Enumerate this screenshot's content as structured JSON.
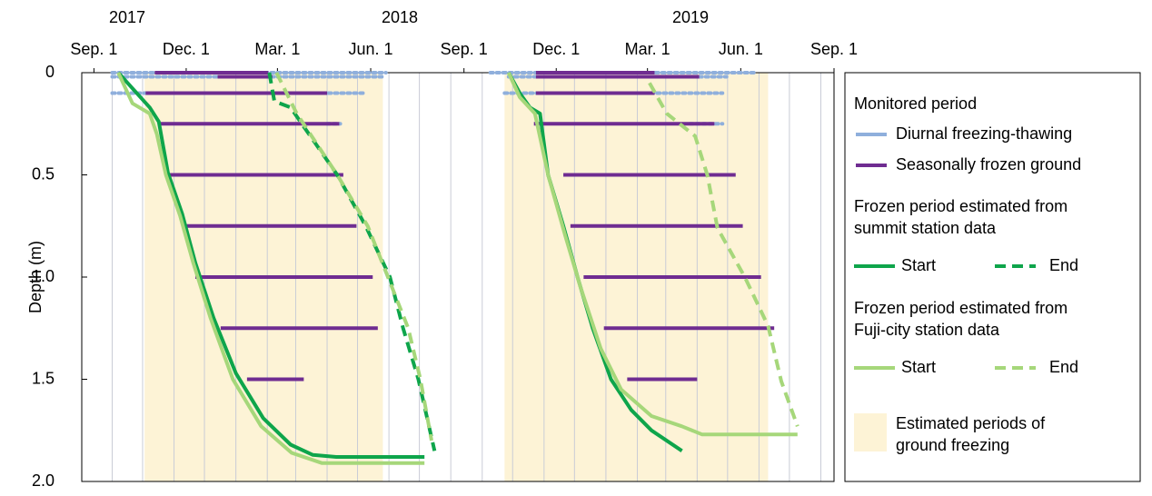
{
  "chart_data": {
    "type": "line",
    "y_label": "Depth (m)",
    "annotations": [
      "2017",
      "2018",
      "2019"
    ],
    "xlim": [
      -12,
      730
    ],
    "ylim": [
      0,
      2
    ],
    "yticks": [
      0,
      0.5,
      {
        "value": 1,
        "label": "1.0"
      },
      1.5,
      {
        "value": 2,
        "label": "2.0"
      }
    ],
    "xticks": [
      {
        "value": 0,
        "label": "Sep. 1"
      },
      {
        "value": 91,
        "label": "Dec. 1"
      },
      {
        "value": 181,
        "label": "Mar. 1"
      },
      {
        "value": 273,
        "label": "Jun. 1"
      },
      {
        "value": 365,
        "label": "Sep. 1"
      },
      {
        "value": 456,
        "label": "Dec. 1"
      },
      {
        "value": 546,
        "label": "Mar. 1"
      },
      {
        "value": 638,
        "label": "Jun. 1"
      },
      {
        "value": 730,
        "label": "Sep. 1"
      }
    ],
    "xgrid": [
      18,
      48,
      79,
      109,
      140,
      171,
      199,
      230,
      260,
      291,
      321,
      352,
      383,
      413,
      444,
      474,
      505,
      536,
      564,
      595,
      625,
      656,
      686,
      717
    ],
    "grid": true,
    "shaded_periods": {
      "name": [
        "Estimated periods of",
        "ground freezing"
      ],
      "color": "#fdf3d6",
      "start": [
        50,
        405
      ],
      "end": [
        285,
        665
      ]
    },
    "frozen_group_title": "Monitored period",
    "frozen_periods": [
      {
        "name": "Diurnal freezing-thawing",
        "color": "#8fafdc",
        "style": "dotted",
        "depth": [
          0,
          0.02,
          0.1,
          0.25,
          0,
          0.02,
          0.1,
          0.25
        ],
        "start": [
          18,
          18,
          18,
          230,
          391,
          409,
          405,
          588
        ],
        "end": [
          288,
          284,
          266,
          243,
          651,
          624,
          620,
          620
        ]
      },
      {
        "name": "Seasonally frozen ground",
        "color": "#6f2c91",
        "style": "solid",
        "depth": [
          0,
          0.02,
          0.1,
          0.25,
          0.5,
          0.75,
          1,
          1.25,
          1.5,
          0,
          0.02,
          0.1,
          0.25,
          0.5,
          0.75,
          1,
          1.25,
          1.5
        ],
        "start": [
          60,
          122,
          51,
          64,
          73,
          87,
          100,
          125,
          151,
          436,
          436,
          436,
          434,
          463,
          470,
          483,
          503,
          526
        ],
        "end": [
          172,
          176,
          230,
          242,
          246,
          259,
          275,
          280,
          207,
          553,
          597,
          553,
          612,
          633,
          640,
          658,
          671,
          595
        ]
      }
    ],
    "line_groups": [
      [
        "Frozen period estimated from",
        "summit station data"
      ],
      [
        "Frozen period estimated from",
        "Fuji-city station data"
      ]
    ],
    "series": [
      {
        "name": "Start",
        "group": 0,
        "dashed": false,
        "color": "#0ea54b",
        "pieces": [
          {
            "x": [
              24,
              55,
              64,
              73,
              87,
              100,
              118,
              140,
              167,
              194,
              216,
              239,
              326
            ],
            "values": [
              0,
              0.17,
              0.24,
              0.49,
              0.69,
              0.93,
              1.2,
              1.47,
              1.69,
              1.82,
              1.87,
              1.88,
              1.88
            ]
          },
          {
            "x": [
              409,
              420,
              430,
              440,
              448,
              463,
              477,
              492,
              510,
              530,
              550,
              580
            ],
            "values": [
              0,
              0.1,
              0.17,
              0.2,
              0.5,
              0.75,
              1,
              1.25,
              1.5,
              1.65,
              1.75,
              1.85
            ]
          }
        ]
      },
      {
        "name": "End",
        "group": 0,
        "dashed": true,
        "color": "#0ea54b",
        "pieces": [
          {
            "x": [
              173,
              178,
              194,
              205,
              240,
              268,
              292,
              305,
              320,
              336
            ],
            "values": [
              0,
              0.14,
              0.17,
              0.25,
              0.5,
              0.75,
              1,
              1.25,
              1.5,
              1.85
            ]
          }
        ]
      },
      {
        "name": "Start",
        "group": 1,
        "dashed": false,
        "color": "#a6d77a",
        "pieces": [
          {
            "x": [
              24,
              38,
              55,
              62,
              71,
              85,
              98,
              115,
              137,
              165,
              195,
              225,
              326
            ],
            "values": [
              0,
              0.15,
              0.2,
              0.3,
              0.5,
              0.7,
              0.93,
              1.2,
              1.5,
              1.73,
              1.86,
              1.91,
              1.91
            ]
          },
          {
            "x": [
              409,
              420,
              435,
              448,
              465,
              480,
              500,
              520,
              550,
              580,
              600,
              694
            ],
            "values": [
              0,
              0.12,
              0.2,
              0.5,
              0.8,
              1.05,
              1.35,
              1.55,
              1.68,
              1.73,
              1.77,
              1.77
            ]
          }
        ]
      },
      {
        "name": "End",
        "group": 1,
        "dashed": true,
        "color": "#a6d77a",
        "pieces": [
          {
            "x": [
              180,
              200,
              240,
              270,
              290,
              310,
              322,
              333
            ],
            "values": [
              0,
              0.2,
              0.5,
              0.75,
              1,
              1.25,
              1.5,
              1.8
            ]
          },
          {
            "x": [
              548,
              565,
              593,
              605,
              615,
              642,
              665,
              678,
              694
            ],
            "values": [
              0.05,
              0.2,
              0.31,
              0.5,
              0.76,
              1,
              1.24,
              1.51,
              1.73
            ]
          }
        ]
      }
    ]
  }
}
